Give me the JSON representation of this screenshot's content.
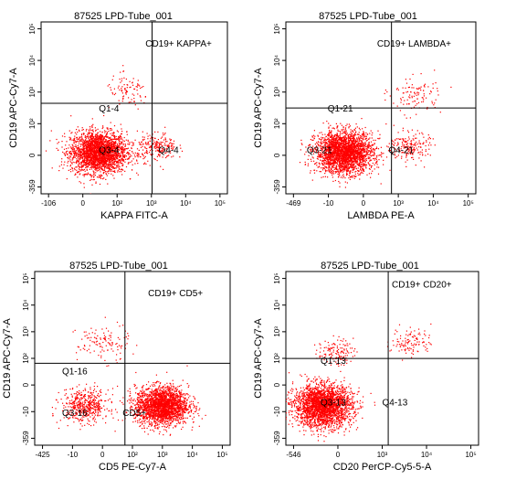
{
  "chart_data": [
    {
      "type": "scatter",
      "title": "87525 LPD-Tube_001",
      "xlabel": "KAPPA FITC-A",
      "ylabel": "CD19 APC-Cy7-A",
      "x_ticks": [
        "-106",
        "0",
        "10²",
        "10³",
        "10⁴",
        "10⁵"
      ],
      "y_ticks": [
        "-359",
        "0",
        "10²",
        "10³",
        "10⁴",
        "10⁵"
      ],
      "quadrant_labels": [
        "CD19+ KAPPA+",
        "Q1-4",
        "Q3-4",
        "Q4-4"
      ],
      "gate_x": 1900,
      "gate_y": 850,
      "color": "#ff0000",
      "populations": [
        {
          "cx": 60,
          "cy": 25,
          "count": 2600,
          "spread": 1.0
        },
        {
          "cx": 2500,
          "cy": 40,
          "count": 220,
          "spread": 0.7
        },
        {
          "cx": 400,
          "cy": 1800,
          "count": 90,
          "spread": 0.8
        }
      ]
    },
    {
      "type": "scatter",
      "title": "87525 LPD-Tube_001",
      "xlabel": "LAMBDA PE-A",
      "ylabel": "CD19 APC-Cy7-A",
      "x_ticks": [
        "-469",
        "-10",
        "0",
        "10³",
        "10⁴",
        "10⁵"
      ],
      "y_ticks": [
        "-359",
        "0",
        "10²",
        "10³",
        "10⁴",
        "10⁵"
      ],
      "quadrant_labels": [
        "CD19+ LAMBDA+",
        "Q1-21",
        "Q3-21",
        "Q4-21"
      ],
      "gate_x": 1200,
      "gate_y": 620,
      "color": "#ff0000",
      "populations": [
        {
          "cx": 60,
          "cy": 25,
          "count": 2600,
          "spread": 1.0
        },
        {
          "cx": 3500,
          "cy": 40,
          "count": 200,
          "spread": 0.7
        },
        {
          "cx": 5000,
          "cy": 1500,
          "count": 110,
          "spread": 0.9
        }
      ]
    },
    {
      "type": "scatter",
      "title": "87525 LPD-Tube_001",
      "xlabel": "CD5 PE-Cy7-A",
      "ylabel": "CD19 APC-Cy7-A",
      "x_ticks": [
        "-425",
        "-10",
        "0",
        "10²",
        "10³",
        "10⁴",
        "10⁵"
      ],
      "y_ticks": [
        "-359",
        "-10",
        "0",
        "10²",
        "10³",
        "10⁴",
        "10⁵"
      ],
      "quadrant_labels": [
        "CD19+ CD5+",
        "Q1-16",
        "Q3-16",
        "CD5+"
      ],
      "gate_x": 400,
      "gate_y": 450,
      "color": "#ff0000",
      "populations": [
        {
          "cx": 3500,
          "cy": 20,
          "count": 2300,
          "spread": 0.9
        },
        {
          "cx": 30,
          "cy": 20,
          "count": 500,
          "spread": 0.8
        },
        {
          "cx": 100,
          "cy": 1800,
          "count": 120,
          "spread": 0.9
        }
      ]
    },
    {
      "type": "scatter",
      "title": "87525 LPD-Tube_001",
      "xlabel": "CD20 PerCP-Cy5-5-A",
      "ylabel": "CD19 APC-Cy7-A",
      "x_ticks": [
        "-546",
        "0",
        "10³",
        "10⁴",
        "10⁵"
      ],
      "y_ticks": [
        "-359",
        "-10",
        "0",
        "10²",
        "10³",
        "10⁴",
        "10⁵"
      ],
      "quadrant_labels": [
        "CD19+ CD20+",
        "Q1-13",
        "Q3-13",
        "Q4-13"
      ],
      "gate_x": 900,
      "gate_y": 620,
      "color": "#ff0000",
      "populations": [
        {
          "cx": 10,
          "cy": 20,
          "count": 2600,
          "spread": 1.0
        },
        {
          "cx": 30,
          "cy": 1000,
          "count": 130,
          "spread": 0.6
        },
        {
          "cx": 3500,
          "cy": 2000,
          "count": 110,
          "spread": 0.7
        }
      ]
    }
  ]
}
